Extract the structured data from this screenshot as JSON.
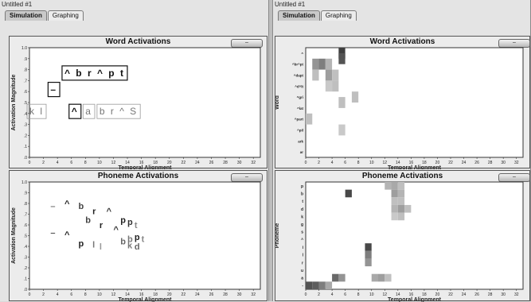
{
  "windows": [
    {
      "title": "Untitled #1",
      "tabs": [
        {
          "label": "Simulation",
          "active": true
        },
        {
          "label": "Graphing",
          "active": false
        }
      ]
    },
    {
      "title": "Untitled #1",
      "tabs": [
        {
          "label": "Simulation",
          "active": true
        },
        {
          "label": "Graphing",
          "active": false
        }
      ]
    }
  ],
  "collapse_label": "–",
  "x_ticks": [
    "0",
    "2",
    "4",
    "6",
    "8",
    "10",
    "12",
    "14",
    "16",
    "18",
    "20",
    "22",
    "24",
    "26",
    "28",
    "30",
    "32"
  ],
  "y_ticks": [
    ".0",
    ".1",
    ".2",
    ".3",
    ".4",
    ".5",
    ".6",
    ".7",
    ".8",
    ".9",
    "1.0"
  ],
  "word_labels": [
    "^",
    "^br^pt",
    "^dapt",
    "^d^lt",
    "^gri",
    "^lat",
    "^part",
    "^pil",
    "ark",
    "ar"
  ],
  "phoneme_labels": [
    "p",
    "b",
    "t",
    "d",
    "k",
    "g",
    "s",
    "^",
    "i",
    "l",
    "r",
    "u",
    "a",
    "-"
  ],
  "chart_data": [
    {
      "type": "scatter",
      "title": "Word Activations",
      "xlabel": "Temporal Alignment",
      "ylabel": "Activation Magnitude",
      "xlim": [
        0,
        33
      ],
      "ylim": [
        0,
        1.0
      ],
      "labels": [
        {
          "text": "^ b r ^ p t",
          "x": 5,
          "y": 0.74,
          "boxed": true,
          "bold": true
        },
        {
          "text": "–",
          "x": 3,
          "y": 0.59,
          "boxed": true,
          "bold": true
        },
        {
          "text": "k l",
          "x": 0,
          "y": 0.39,
          "boxed": true,
          "bold": false
        },
        {
          "text": "^",
          "x": 6,
          "y": 0.39,
          "boxed": true,
          "bold": true
        },
        {
          "text": "a",
          "x": 8,
          "y": 0.39,
          "boxed": true,
          "bold": false
        },
        {
          "text": "b r ^ S",
          "x": 10,
          "y": 0.39,
          "boxed": true,
          "bold": false
        }
      ]
    },
    {
      "type": "scatter",
      "title": "Phoneme Activations",
      "xlabel": "Temporal Alignment",
      "ylabel": "Activation Magnitude",
      "xlim": [
        0,
        33
      ],
      "ylim": [
        0,
        1.0
      ],
      "labels": [
        {
          "text": "–",
          "x": 3,
          "y": 0.75,
          "shade": "#777"
        },
        {
          "text": "^",
          "x": 5,
          "y": 0.77,
          "shade": "#222"
        },
        {
          "text": "b",
          "x": 7,
          "y": 0.75,
          "shade": "#444"
        },
        {
          "text": "r",
          "x": 9,
          "y": 0.7,
          "shade": "#222"
        },
        {
          "text": "^",
          "x": 11,
          "y": 0.7,
          "shade": "#333"
        },
        {
          "text": "b",
          "x": 8,
          "y": 0.62,
          "shade": "#444"
        },
        {
          "text": "r",
          "x": 10,
          "y": 0.57,
          "shade": "#222"
        },
        {
          "text": "^",
          "x": 12,
          "y": 0.53,
          "shade": "#333"
        },
        {
          "text": "p",
          "x": 13,
          "y": 0.62,
          "shade": "#222"
        },
        {
          "text": "p",
          "x": 14,
          "y": 0.6,
          "shade": "#333"
        },
        {
          "text": "t",
          "x": 15,
          "y": 0.57,
          "shade": "#888"
        },
        {
          "text": "–",
          "x": 3,
          "y": 0.5,
          "shade": "#555"
        },
        {
          "text": "^",
          "x": 5,
          "y": 0.48,
          "shade": "#222"
        },
        {
          "text": "p",
          "x": 7,
          "y": 0.4,
          "shade": "#222"
        },
        {
          "text": "l",
          "x": 9,
          "y": 0.39,
          "shade": "#777"
        },
        {
          "text": "l",
          "x": 10,
          "y": 0.37,
          "shade": "#999"
        },
        {
          "text": "b",
          "x": 13,
          "y": 0.42,
          "shade": "#666"
        },
        {
          "text": "b",
          "x": 14,
          "y": 0.44,
          "shade": "#777"
        },
        {
          "text": "p",
          "x": 15,
          "y": 0.46,
          "shade": "#222"
        },
        {
          "text": "t",
          "x": 16,
          "y": 0.44,
          "shade": "#888"
        },
        {
          "text": "k",
          "x": 14,
          "y": 0.38,
          "shade": "#777"
        },
        {
          "text": "d",
          "x": 15,
          "y": 0.37,
          "shade": "#666"
        }
      ]
    },
    {
      "type": "heatmap",
      "title": "Word Activations",
      "xlabel": "Temporal Alignment",
      "ylabel": "Word",
      "xlim": [
        0,
        33
      ],
      "cells": [
        {
          "x": 5,
          "row": 0,
          "v": 0.9
        },
        {
          "x": 5,
          "row": 0.5,
          "v": 0.8
        },
        {
          "x": 1,
          "row": 1,
          "v": 0.5
        },
        {
          "x": 2,
          "row": 1,
          "v": 0.6
        },
        {
          "x": 3,
          "row": 1,
          "v": 0.35
        },
        {
          "x": 1,
          "row": 2,
          "v": 0.3
        },
        {
          "x": 3,
          "row": 2,
          "v": 0.45
        },
        {
          "x": 4,
          "row": 2,
          "v": 0.3
        },
        {
          "x": 3,
          "row": 3,
          "v": 0.25
        },
        {
          "x": 4,
          "row": 3,
          "v": 0.3
        },
        {
          "x": 7,
          "row": 4,
          "v": 0.3
        },
        {
          "x": 5,
          "row": 4.5,
          "v": 0.3
        },
        {
          "x": 0,
          "row": 6,
          "v": 0.3
        },
        {
          "x": 5,
          "row": 7,
          "v": 0.25
        }
      ]
    },
    {
      "type": "heatmap",
      "title": "Phoneme Activations",
      "xlabel": "Temporal Alignment",
      "ylabel": "Phoneme",
      "xlim": [
        0,
        33
      ],
      "cells": [
        {
          "x": 6,
          "row": 1,
          "v": 0.85
        },
        {
          "x": 12,
          "row": 0,
          "v": 0.35
        },
        {
          "x": 13,
          "row": 0,
          "v": 0.4
        },
        {
          "x": 14,
          "row": 0,
          "v": 0.3
        },
        {
          "x": 13,
          "row": 1,
          "v": 0.45
        },
        {
          "x": 14,
          "row": 1,
          "v": 0.35
        },
        {
          "x": 13,
          "row": 2,
          "v": 0.3
        },
        {
          "x": 14,
          "row": 2,
          "v": 0.3
        },
        {
          "x": 13,
          "row": 3,
          "v": 0.35
        },
        {
          "x": 14,
          "row": 3,
          "v": 0.45
        },
        {
          "x": 15,
          "row": 3,
          "v": 0.3
        },
        {
          "x": 13,
          "row": 4,
          "v": 0.25
        },
        {
          "x": 14,
          "row": 4,
          "v": 0.3
        },
        {
          "x": 9,
          "row": 8,
          "v": 0.85
        },
        {
          "x": 9,
          "row": 9,
          "v": 0.6
        },
        {
          "x": 9,
          "row": 10,
          "v": 0.5
        },
        {
          "x": 4,
          "row": 12,
          "v": 0.7
        },
        {
          "x": 5,
          "row": 12,
          "v": 0.5
        },
        {
          "x": 10,
          "row": 12,
          "v": 0.4
        },
        {
          "x": 11,
          "row": 12,
          "v": 0.45
        },
        {
          "x": 12,
          "row": 12,
          "v": 0.3
        },
        {
          "x": 0,
          "row": 13,
          "v": 0.8
        },
        {
          "x": 1,
          "row": 13,
          "v": 0.75
        },
        {
          "x": 2,
          "row": 13,
          "v": 0.6
        },
        {
          "x": 3,
          "row": 13,
          "v": 0.4
        }
      ]
    }
  ]
}
